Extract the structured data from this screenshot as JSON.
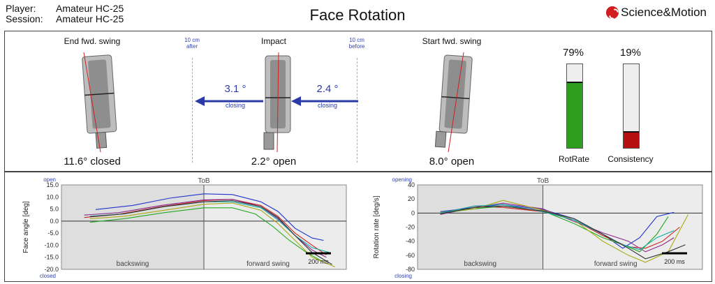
{
  "header": {
    "player_label": "Player:",
    "player_value": "Amateur HC-25",
    "session_label": "Session:",
    "session_value": "Amateur HC-25",
    "title": "Face Rotation",
    "logo_text": "Science&Motion",
    "logo_color": "#d11c20"
  },
  "positions": {
    "end": {
      "label": "End fwd. swing",
      "angle": "11.6° closed"
    },
    "impact": {
      "label": "Impact",
      "angle": "2.2° open"
    },
    "start": {
      "label": "Start fwd. swing",
      "angle": "8.0° open"
    },
    "after_note": [
      "10 cm",
      "after"
    ],
    "before_note": [
      "10 cm",
      "before"
    ],
    "left_arrow": {
      "value": "3.1 °",
      "note": "closing"
    },
    "right_arrow": {
      "value": "2.4 °",
      "note": "closing"
    },
    "arrow_color": "#2a3aa8"
  },
  "gauges": [
    {
      "label": "RotRate",
      "percent_text": "79%",
      "fraction": 0.79,
      "color": "#2e9e1f"
    },
    {
      "label": "Consistency",
      "percent_text": "19%",
      "fraction": 0.19,
      "color": "#b50f0f"
    }
  ],
  "chart_data": [
    {
      "type": "line",
      "ylabel": "Face angle [deg]",
      "top_note": "open",
      "bottom_note": "closed",
      "marker_label": "ToB",
      "region_left": "backswing",
      "region_right": "forward swing",
      "scale_label": "200 ms",
      "ylim": [
        -20,
        15
      ],
      "yticks": [
        "15.0",
        "10.0",
        "5.0",
        "0.0",
        "-5.0",
        "-10.0",
        "-15.0",
        "-20.0"
      ],
      "xlim": [
        0,
        1
      ],
      "tob_x": 0.5,
      "series": [
        {
          "color": "#2233cc",
          "x": [
            0.12,
            0.25,
            0.38,
            0.5,
            0.6,
            0.7,
            0.76,
            0.82,
            0.88,
            0.92
          ],
          "y": [
            4.8,
            6.5,
            9.5,
            11.3,
            11,
            8,
            4,
            -3,
            -7,
            -8
          ]
        },
        {
          "color": "#cc2222",
          "x": [
            0.08,
            0.2,
            0.35,
            0.5,
            0.6,
            0.7,
            0.76,
            0.82,
            0.88,
            0.93
          ],
          "y": [
            1.5,
            2.8,
            6,
            8.5,
            9,
            6.5,
            2,
            -5,
            -10,
            -14
          ]
        },
        {
          "color": "#8a2a8a",
          "x": [
            0.08,
            0.2,
            0.35,
            0.5,
            0.6,
            0.7,
            0.76,
            0.82,
            0.88,
            0.93
          ],
          "y": [
            2.5,
            3.5,
            6.5,
            8.8,
            9,
            6,
            1,
            -6,
            -12,
            -15
          ]
        },
        {
          "color": "#22aa22",
          "x": [
            0.1,
            0.22,
            0.36,
            0.5,
            0.6,
            0.68,
            0.74,
            0.8,
            0.86,
            0.92
          ],
          "y": [
            -0.5,
            1,
            3.5,
            5.5,
            5.5,
            3,
            -2,
            -8,
            -13,
            -17
          ]
        },
        {
          "color": "#aaaa11",
          "x": [
            0.1,
            0.22,
            0.36,
            0.5,
            0.6,
            0.7,
            0.76,
            0.82,
            0.88,
            0.96
          ],
          "y": [
            1,
            2,
            4.5,
            7,
            7.5,
            4.5,
            -1,
            -8,
            -15,
            -19
          ]
        },
        {
          "color": "#11aaaa",
          "x": [
            0.1,
            0.22,
            0.36,
            0.5,
            0.6,
            0.7,
            0.76,
            0.82,
            0.88,
            0.94
          ],
          "y": [
            2,
            3,
            6,
            8,
            8,
            5.5,
            0.5,
            -6,
            -11,
            -13
          ]
        },
        {
          "color": "#333333",
          "x": [
            0.1,
            0.22,
            0.36,
            0.5,
            0.6,
            0.7,
            0.76,
            0.82,
            0.88,
            0.95
          ],
          "y": [
            1.8,
            3,
            6,
            8,
            8.5,
            6,
            1.5,
            -6,
            -13,
            -18
          ]
        }
      ]
    },
    {
      "type": "line",
      "ylabel": "Rotation rate [deg/s]",
      "top_note": "opening",
      "bottom_note": "closing",
      "marker_label": "ToB",
      "region_left": "backswing",
      "region_right": "forward swing",
      "scale_label": "200 ms",
      "ylim": [
        -80,
        40
      ],
      "yticks": [
        "40",
        "20",
        "0",
        "-20",
        "-40",
        "-60",
        "-80"
      ],
      "xlim": [
        0,
        1
      ],
      "tob_x": 0.44,
      "series": [
        {
          "color": "#2233cc",
          "x": [
            0.08,
            0.2,
            0.3,
            0.44,
            0.55,
            0.65,
            0.72,
            0.78,
            0.84,
            0.9
          ],
          "y": [
            2,
            8,
            12,
            5,
            -8,
            -30,
            -50,
            -35,
            -5,
            1
          ]
        },
        {
          "color": "#cc2222",
          "x": [
            0.08,
            0.2,
            0.3,
            0.44,
            0.55,
            0.65,
            0.74,
            0.8,
            0.86,
            0.92
          ],
          "y": [
            0,
            10,
            8,
            2,
            -10,
            -32,
            -48,
            -50,
            -40,
            -20
          ]
        },
        {
          "color": "#8a2a8a",
          "x": [
            0.08,
            0.2,
            0.3,
            0.44,
            0.55,
            0.65,
            0.74,
            0.8,
            0.86,
            0.9
          ],
          "y": [
            -2,
            8,
            14,
            6,
            -12,
            -28,
            -40,
            -55,
            -45,
            -35
          ]
        },
        {
          "color": "#22aa22",
          "x": [
            0.08,
            0.2,
            0.3,
            0.44,
            0.55,
            0.65,
            0.72,
            0.78,
            0.84,
            0.88
          ],
          "y": [
            0,
            6,
            10,
            3,
            -15,
            -35,
            -45,
            -55,
            -30,
            -5
          ]
        },
        {
          "color": "#aaaa11",
          "x": [
            0.08,
            0.2,
            0.3,
            0.44,
            0.55,
            0.65,
            0.74,
            0.8,
            0.88,
            0.95
          ],
          "y": [
            1,
            6,
            18,
            4,
            -10,
            -40,
            -60,
            -70,
            -55,
            -2
          ]
        },
        {
          "color": "#11aaaa",
          "x": [
            0.08,
            0.2,
            0.3,
            0.44,
            0.55,
            0.65,
            0.72,
            0.78,
            0.84,
            0.9
          ],
          "y": [
            0,
            10,
            12,
            2,
            -10,
            -30,
            -45,
            -52,
            -35,
            -25
          ]
        },
        {
          "color": "#333333",
          "x": [
            0.08,
            0.2,
            0.3,
            0.44,
            0.55,
            0.65,
            0.74,
            0.8,
            0.88,
            0.94
          ],
          "y": [
            -1,
            8,
            10,
            3,
            -8,
            -30,
            -50,
            -65,
            -55,
            -45
          ]
        }
      ]
    }
  ]
}
